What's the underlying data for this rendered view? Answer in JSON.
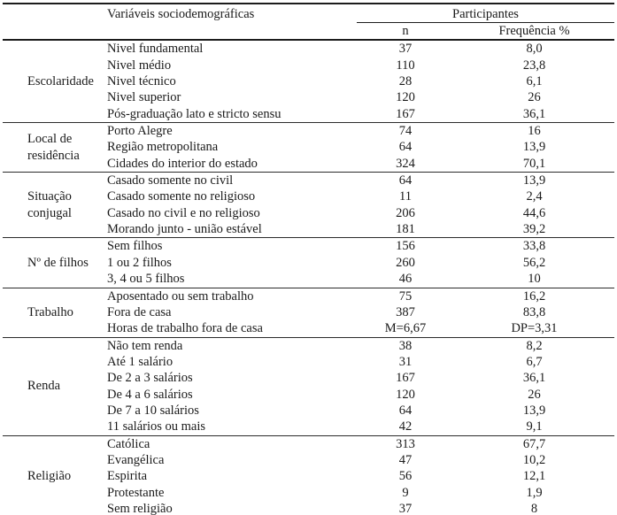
{
  "table": {
    "headers": {
      "variables": "Variáveis sociodemográficas",
      "participants": "Participantes",
      "n": "n",
      "frequency": "Frequência %"
    },
    "sections": [
      {
        "category": "Escolaridade",
        "rows": [
          {
            "label": "Nivel fundamental",
            "n": "37",
            "freq": "8,0"
          },
          {
            "label": "Nivel médio",
            "n": "110",
            "freq": "23,8"
          },
          {
            "label": "Nivel técnico",
            "n": "28",
            "freq": "6,1"
          },
          {
            "label": "Nivel superior",
            "n": "120",
            "freq": "26"
          },
          {
            "label": "Pós-graduação lato e stricto sensu",
            "n": "167",
            "freq": "36,1"
          }
        ]
      },
      {
        "category": "Local de residência",
        "rows": [
          {
            "label": "Porto Alegre",
            "n": "74",
            "freq": "16"
          },
          {
            "label": "Região metropolitana",
            "n": "64",
            "freq": "13,9"
          },
          {
            "label": "Cidades do interior do estado",
            "n": "324",
            "freq": "70,1"
          }
        ]
      },
      {
        "category": "Situação conjugal",
        "rows": [
          {
            "label": "Casado somente no civil",
            "n": "64",
            "freq": "13,9"
          },
          {
            "label": "Casado somente no religioso",
            "n": "11",
            "freq": "2,4"
          },
          {
            "label": "Casado no civil e no religioso",
            "n": "206",
            "freq": "44,6"
          },
          {
            "label": "Morando junto - união estável",
            "n": "181",
            "freq": "39,2"
          }
        ]
      },
      {
        "category": "Nº de filhos",
        "rows": [
          {
            "label": "Sem filhos",
            "n": "156",
            "freq": "33,8"
          },
          {
            "label": "1 ou 2 filhos",
            "n": "260",
            "freq": "56,2"
          },
          {
            "label": "3, 4 ou 5 filhos",
            "n": "46",
            "freq": "10"
          }
        ]
      },
      {
        "category": "Trabalho",
        "rows": [
          {
            "label": "Aposentado ou sem trabalho",
            "n": "75",
            "freq": "16,2"
          },
          {
            "label": "Fora de casa",
            "n": "387",
            "freq": "83,8"
          },
          {
            "label": "Horas de trabalho fora de casa",
            "n": "M=6,67",
            "freq": "DP=3,31"
          }
        ]
      },
      {
        "category": "Renda",
        "rows": [
          {
            "label": "Não tem renda",
            "n": "38",
            "freq": "8,2"
          },
          {
            "label": "Até 1 salário",
            "n": "31",
            "freq": "6,7"
          },
          {
            "label": "De 2 a 3 salários",
            "n": "167",
            "freq": "36,1"
          },
          {
            "label": "De 4 a 6 salários",
            "n": "120",
            "freq": "26"
          },
          {
            "label": "De 7 a 10 salários",
            "n": "64",
            "freq": "13,9"
          },
          {
            "label": "11 salários ou mais",
            "n": "42",
            "freq": "9,1"
          }
        ]
      },
      {
        "category": "Religião",
        "rows": [
          {
            "label": "Católica",
            "n": "313",
            "freq": "67,7"
          },
          {
            "label": "Evangélica",
            "n": "47",
            "freq": "10,2"
          },
          {
            "label": "Espirita",
            "n": "56",
            "freq": "12,1"
          },
          {
            "label": "Protestante",
            "n": "9",
            "freq": "1,9"
          },
          {
            "label": "Sem religião",
            "n": "37",
            "freq": "8"
          }
        ]
      }
    ]
  }
}
